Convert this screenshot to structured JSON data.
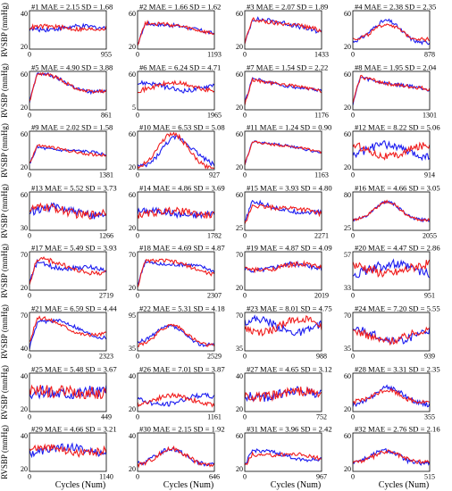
{
  "figure": {
    "row_ylabel": "RVSBP (mmHg)",
    "xlabel": "Cycles (Num)",
    "colors": {
      "series_a": "#1c1cf0",
      "series_b": "#f01c1c",
      "axes": "#000000"
    }
  },
  "chart_data": [
    {
      "type": "line",
      "title": "#1 MAE = 2.15 SD = 1.68",
      "xlim": [
        0,
        955
      ],
      "ylim": [
        20,
        40
      ],
      "yticks": [
        20,
        40
      ],
      "xticks": [
        0,
        955
      ],
      "shape": "flat",
      "level": 0.55,
      "diverge": 0.04,
      "noise": 0.12
    },
    {
      "type": "line",
      "title": "#2 MAE = 1.66 SD = 1.62",
      "xlim": [
        0,
        1193
      ],
      "ylim": [
        20,
        60
      ],
      "yticks": [
        20,
        60
      ],
      "xticks": [
        0,
        1193
      ],
      "shape": "rise_decay",
      "level": 0.7,
      "diverge": 0.03,
      "noise": 0.1
    },
    {
      "type": "line",
      "title": "#3 MAE = 2.07 SD = 1.89",
      "xlim": [
        0,
        1433
      ],
      "ylim": [
        20,
        60
      ],
      "yticks": [
        20,
        60
      ],
      "xticks": [
        0,
        1433
      ],
      "shape": "rise_decay",
      "level": 0.8,
      "diverge": 0.03,
      "noise": 0.12
    },
    {
      "type": "line",
      "title": "#4 MAE = 2.38 SD = 2.35",
      "xlim": [
        0,
        878
      ],
      "ylim": [
        20,
        60
      ],
      "yticks": [
        20,
        60
      ],
      "xticks": [
        0,
        878
      ],
      "shape": "late_peak",
      "level": 0.7,
      "diverge": 0.05,
      "noise": 0.1
    },
    {
      "type": "line",
      "title": "#5 MAE = 4.90 SD = 3.88",
      "xlim": [
        0,
        861
      ],
      "ylim": [
        20,
        60
      ],
      "yticks": [
        20,
        60
      ],
      "xticks": [
        0,
        861
      ],
      "shape": "rise_decay",
      "level": 0.85,
      "diverge": 0.12,
      "noise": 0.1
    },
    {
      "type": "line",
      "title": "#6 MAE = 6.24 SD = 4.71",
      "xlim": [
        0,
        1965
      ],
      "ylim": [
        5,
        60
      ],
      "yticks": [
        5,
        60
      ],
      "xticks": [
        0,
        1965
      ],
      "shape": "flat",
      "level": 0.6,
      "diverge": 0.1,
      "noise": 0.12
    },
    {
      "type": "line",
      "title": "#7 MAE = 1.54 SD = 2.22",
      "xlim": [
        0,
        1176
      ],
      "ylim": [
        20,
        60
      ],
      "yticks": [
        20,
        60
      ],
      "xticks": [
        0,
        1176
      ],
      "shape": "rise_decay",
      "level": 0.8,
      "diverge": 0.02,
      "noise": 0.08
    },
    {
      "type": "line",
      "title": "#8 MAE = 1.95 SD = 2.04",
      "xlim": [
        0,
        1301
      ],
      "ylim": [
        20,
        60
      ],
      "yticks": [
        20,
        60
      ],
      "xticks": [
        0,
        1301
      ],
      "shape": "rise_decay",
      "level": 0.85,
      "diverge": 0.03,
      "noise": 0.1
    },
    {
      "type": "line",
      "title": "#9 MAE = 2.02 SD = 1.58",
      "xlim": [
        0,
        1381
      ],
      "ylim": [
        20,
        60
      ],
      "yticks": [
        20,
        60
      ],
      "xticks": [
        0,
        1381
      ],
      "shape": "rise_decay",
      "level": 0.6,
      "diverge": 0.03,
      "noise": 0.08
    },
    {
      "type": "line",
      "title": "#10 MAE = 6.53 SD = 5.08",
      "xlim": [
        0,
        927
      ],
      "ylim": [
        20,
        60
      ],
      "yticks": [
        20,
        60
      ],
      "xticks": [
        0,
        927
      ],
      "shape": "late_peak",
      "level": 0.75,
      "diverge": 0.18,
      "noise": 0.12
    },
    {
      "type": "line",
      "title": "#11 MAE = 1.24 SD = 0.90",
      "xlim": [
        0,
        1163
      ],
      "ylim": [
        20,
        60
      ],
      "yticks": [
        20,
        60
      ],
      "xticks": [
        0,
        1163
      ],
      "shape": "rise_decay",
      "level": 0.75,
      "diverge": 0.02,
      "noise": 0.06
    },
    {
      "type": "line",
      "title": "#12 MAE = 8.22 SD = 5.06",
      "xlim": [
        0,
        914
      ],
      "ylim": [
        20,
        60
      ],
      "yticks": [
        20,
        60
      ],
      "xticks": [
        0,
        914
      ],
      "shape": "flat",
      "level": 0.5,
      "diverge": 0.15,
      "noise": 0.2
    },
    {
      "type": "line",
      "title": "#13 MAE = 5.52 SD = 3.73",
      "xlim": [
        0,
        1266
      ],
      "ylim": [
        30,
        60
      ],
      "yticks": [
        30,
        60
      ],
      "xticks": [
        0,
        1266
      ],
      "shape": "flat",
      "level": 0.5,
      "diverge": 0.1,
      "noise": 0.22
    },
    {
      "type": "line",
      "title": "#14 MAE = 4.86 SD = 3.69",
      "xlim": [
        0,
        1782
      ],
      "ylim": [
        20,
        60
      ],
      "yticks": [
        20,
        60
      ],
      "xticks": [
        0,
        1782
      ],
      "shape": "flat",
      "level": 0.45,
      "diverge": 0.06,
      "noise": 0.18
    },
    {
      "type": "line",
      "title": "#15 MAE = 3.93 SD = 4.80",
      "xlim": [
        0,
        2271
      ],
      "ylim": [
        25,
        60
      ],
      "yticks": [
        25,
        60
      ],
      "xticks": [
        0,
        2271
      ],
      "shape": "rise_decay",
      "level": 0.7,
      "diverge": 0.05,
      "noise": 0.12
    },
    {
      "type": "line",
      "title": "#16 MAE = 4.66 SD = 3.05",
      "xlim": [
        0,
        2055
      ],
      "ylim": [
        25,
        80
      ],
      "yticks": [
        25,
        80
      ],
      "xticks": [
        0,
        2055
      ],
      "shape": "late_peak",
      "level": 0.8,
      "diverge": 0.06,
      "noise": 0.08
    },
    {
      "type": "line",
      "title": "#17 MAE = 5.49 SD = 3.93",
      "xlim": [
        0,
        2719
      ],
      "ylim": [
        20,
        70
      ],
      "yticks": [
        20,
        70
      ],
      "xticks": [
        0,
        2719
      ],
      "shape": "rise_decay",
      "level": 0.75,
      "diverge": 0.08,
      "noise": 0.12
    },
    {
      "type": "line",
      "title": "#18 MAE = 4.69 SD = 4.87",
      "xlim": [
        0,
        2307
      ],
      "ylim": [
        20,
        70
      ],
      "yticks": [
        20,
        70
      ],
      "xticks": [
        0,
        2307
      ],
      "shape": "rise_decay",
      "level": 0.8,
      "diverge": 0.07,
      "noise": 0.1
    },
    {
      "type": "line",
      "title": "#19 MAE = 4.87 SD = 4.09",
      "xlim": [
        0,
        2019
      ],
      "ylim": [
        20,
        70
      ],
      "yticks": [
        20,
        70
      ],
      "xticks": [
        0,
        2019
      ],
      "shape": "flat",
      "level": 0.6,
      "diverge": 0.08,
      "noise": 0.12
    },
    {
      "type": "line",
      "title": "#20 MAE = 4.47 SD = 2.86",
      "xlim": [
        0,
        951
      ],
      "ylim": [
        33,
        57
      ],
      "yticks": [
        33,
        57
      ],
      "xticks": [
        0,
        951
      ],
      "shape": "flat",
      "level": 0.55,
      "diverge": 0.12,
      "noise": 0.25
    },
    {
      "type": "line",
      "title": "#21 MAE = 6.59 SD = 4.44",
      "xlim": [
        0,
        2323
      ],
      "ylim": [
        40,
        70
      ],
      "yticks": [
        40,
        70
      ],
      "xticks": [
        0,
        2323
      ],
      "shape": "rise_decay",
      "level": 0.75,
      "diverge": 0.12,
      "noise": 0.1
    },
    {
      "type": "line",
      "title": "#22 MAE = 5.31 SD = 4.18",
      "xlim": [
        0,
        2529
      ],
      "ylim": [
        35,
        95
      ],
      "yticks": [
        35,
        95
      ],
      "xticks": [
        0,
        2529
      ],
      "shape": "late_peak",
      "level": 0.6,
      "diverge": 0.07,
      "noise": 0.1
    },
    {
      "type": "line",
      "title": "#23 MAE = 8.01 SD = 4.75",
      "xlim": [
        0,
        988
      ],
      "ylim": [
        35,
        70
      ],
      "yticks": [
        35,
        70
      ],
      "xticks": [
        0,
        988
      ],
      "shape": "flat",
      "level": 0.65,
      "diverge": 0.18,
      "noise": 0.2
    },
    {
      "type": "line",
      "title": "#24 MAE = 7.20 SD = 5.55",
      "xlim": [
        0,
        939
      ],
      "ylim": [
        35,
        70
      ],
      "yticks": [
        35,
        70
      ],
      "xticks": [
        0,
        939
      ],
      "shape": "flat",
      "level": 0.4,
      "diverge": 0.14,
      "noise": 0.2
    },
    {
      "type": "line",
      "title": "#25 MAE = 5.48 SD = 3.67",
      "xlim": [
        0,
        449
      ],
      "ylim": [
        20,
        40
      ],
      "yticks": [
        20,
        40
      ],
      "xticks": [
        0,
        449
      ],
      "shape": "flat",
      "level": 0.5,
      "diverge": 0.02,
      "noise": 0.35
    },
    {
      "type": "line",
      "title": "#26 MAE = 7.01 SD = 3.87",
      "xlim": [
        0,
        1161
      ],
      "ylim": [
        20,
        40
      ],
      "yticks": [
        20,
        40
      ],
      "xticks": [
        0,
        1161
      ],
      "shape": "flat",
      "level": 0.3,
      "diverge": 0.12,
      "noise": 0.12
    },
    {
      "type": "line",
      "title": "#27 MAE = 4.65 SD = 3.12",
      "xlim": [
        0,
        752
      ],
      "ylim": [
        20,
        40
      ],
      "yticks": [
        20,
        40
      ],
      "xticks": [
        0,
        752
      ],
      "shape": "flat",
      "level": 0.45,
      "diverge": 0.08,
      "noise": 0.25
    },
    {
      "type": "line",
      "title": "#28 MAE = 3.31 SD = 2.35",
      "xlim": [
        0,
        355
      ],
      "ylim": [
        20,
        60
      ],
      "yticks": [
        20,
        60
      ],
      "xticks": [
        0,
        355
      ],
      "shape": "late_peak",
      "level": 0.6,
      "diverge": 0.04,
      "noise": 0.12
    },
    {
      "type": "line",
      "title": "#29 MAE = 4.66 SD = 3.21",
      "xlim": [
        0,
        1140
      ],
      "ylim": [
        20,
        40
      ],
      "yticks": [
        20,
        40
      ],
      "xticks": [
        0,
        1140
      ],
      "shape": "flat",
      "level": 0.55,
      "diverge": 0.08,
      "noise": 0.2
    },
    {
      "type": "line",
      "title": "#30 MAE = 2.15 SD = 1.92",
      "xlim": [
        0,
        646
      ],
      "ylim": [
        20,
        40
      ],
      "yticks": [
        20,
        40
      ],
      "xticks": [
        0,
        646
      ],
      "shape": "late_peak",
      "level": 0.55,
      "diverge": 0.04,
      "noise": 0.12
    },
    {
      "type": "line",
      "title": "#31 MAE = 3.96 SD = 2.42",
      "xlim": [
        0,
        967
      ],
      "ylim": [
        20,
        60
      ],
      "yticks": [
        20,
        60
      ],
      "xticks": [
        0,
        967
      ],
      "shape": "rise_decay",
      "level": 0.5,
      "diverge": 0.06,
      "noise": 0.1
    },
    {
      "type": "line",
      "title": "#32 MAE = 2.76 SD = 2.16",
      "xlim": [
        0,
        515
      ],
      "ylim": [
        20,
        60
      ],
      "yticks": [
        20,
        60
      ],
      "xticks": [
        0,
        515
      ],
      "shape": "late_peak",
      "level": 0.55,
      "diverge": 0.04,
      "noise": 0.12
    }
  ]
}
